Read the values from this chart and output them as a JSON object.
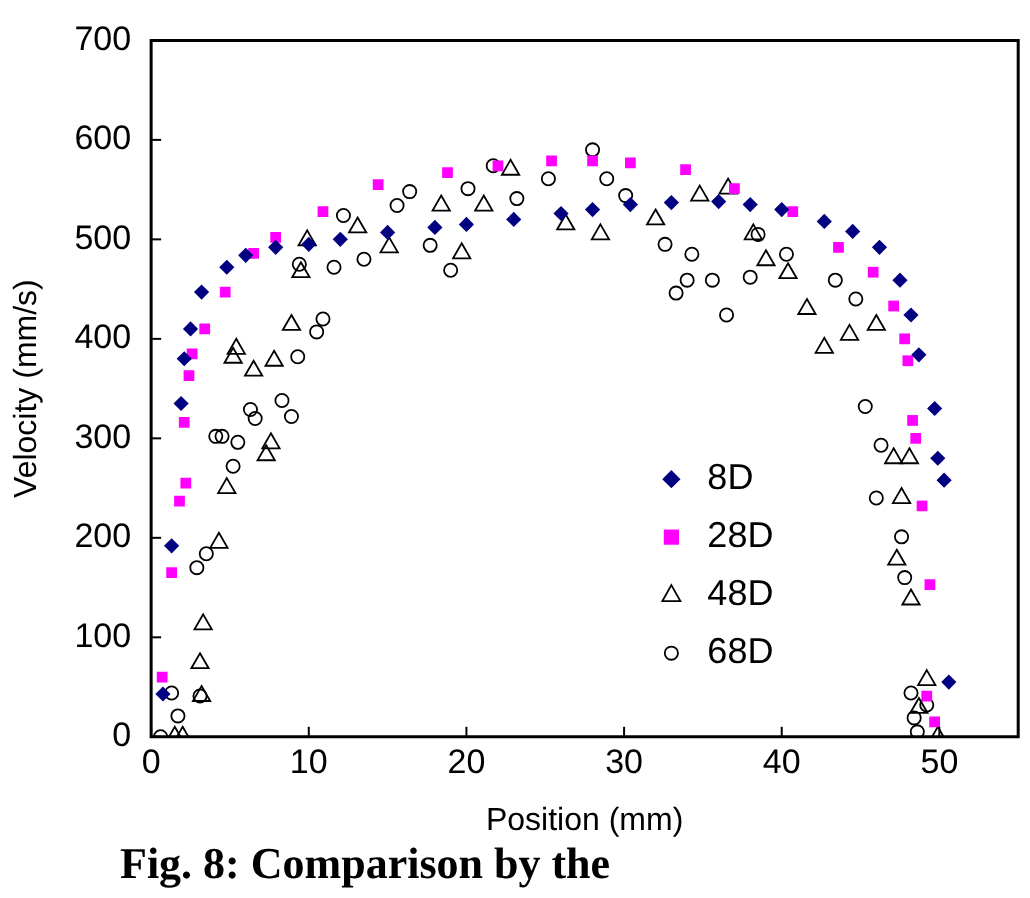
{
  "chart_data": {
    "type": "scatter",
    "xlabel": "Position (mm)",
    "ylabel": "Velocity (mm/s)",
    "xlim": [
      0,
      55
    ],
    "xticks": [
      0,
      10,
      20,
      30,
      40,
      50
    ],
    "ylim": [
      0,
      700
    ],
    "yticks": [
      0,
      100,
      200,
      300,
      400,
      500,
      600,
      700
    ],
    "grid": false,
    "legend": "right",
    "annotations": [
      "Fig. 8: Comparison by the"
    ],
    "series": [
      {
        "name": "8D",
        "color": "#000080",
        "marker": "diamond",
        "x": [
          0.75,
          1.3,
          1.9,
          2.1,
          2.5,
          3.2,
          4.8,
          6,
          7.9,
          10,
          12,
          15,
          18,
          20,
          23,
          26,
          28,
          30.4,
          33,
          36,
          38,
          40,
          42.7,
          44.5,
          46.2,
          47.5,
          48.2,
          48.7,
          49.7,
          49.9,
          50.3,
          50.6
        ],
        "values": [
          43,
          192,
          335,
          380,
          410,
          447,
          472,
          484,
          492,
          495,
          500,
          507,
          512,
          515,
          520,
          526,
          530,
          535,
          537,
          538,
          535,
          530,
          518,
          508,
          492,
          459,
          424,
          384,
          330,
          280,
          258,
          55
        ]
      },
      {
        "name": "28D",
        "color": "#ff00ff",
        "marker": "square",
        "x": [
          0.7,
          1.3,
          1.8,
          2.2,
          2.1,
          2.4,
          2.6,
          3.4,
          4.7,
          6.5,
          7.9,
          10.9,
          14.4,
          18.8,
          22,
          25.4,
          28,
          30.4,
          33.9,
          37,
          40.7,
          43.6,
          45.8,
          47.1,
          47.8,
          48,
          48.3,
          48.5,
          48.9,
          49.4,
          49.2,
          49.7
        ],
        "values": [
          60,
          165,
          237,
          255,
          316,
          363,
          385,
          410,
          447,
          486,
          502,
          528,
          555,
          567,
          574,
          579,
          579,
          577,
          570,
          551,
          528,
          492,
          467,
          433,
          400,
          378,
          318,
          300,
          232,
          153,
          41,
          15
        ]
      },
      {
        "name": "48D",
        "color": "#000000",
        "marker": "triangle",
        "x": [
          1.5,
          2,
          3.2,
          3.1,
          3.3,
          4.3,
          4.8,
          7.3,
          7.6,
          5.2,
          5.4,
          6.5,
          7.8,
          8.9,
          9.5,
          9.9,
          13.1,
          15.1,
          18.4,
          19.7,
          21.1,
          22.8,
          26.3,
          28.5,
          32,
          34.8,
          36.6,
          38.2,
          39,
          40.4,
          41.6,
          42.7,
          44.3,
          46,
          47.1,
          48.1,
          47.6,
          47.3,
          48.2,
          49.2,
          48.7,
          49.9
        ],
        "values": [
          0,
          0,
          41,
          74,
          113,
          195,
          250,
          283,
          295,
          381,
          390,
          368,
          378,
          414,
          467,
          499,
          512,
          492,
          534,
          486,
          534,
          570,
          515,
          505,
          520,
          544,
          551,
          505,
          479,
          466,
          430,
          391,
          404,
          414,
          280,
          280,
          240,
          178,
          138,
          57,
          29,
          0
        ]
      },
      {
        "name": "68D",
        "color": "#000000",
        "marker": "circle",
        "x": [
          0.6,
          1.7,
          1.3,
          3.1,
          2.9,
          3.5,
          4.1,
          4.5,
          5.5,
          5.2,
          6.3,
          6.6,
          8.3,
          8.9,
          9.3,
          10.5,
          10.9,
          9.4,
          11.6,
          12.2,
          13.5,
          15.6,
          16.4,
          17.7,
          19,
          20.1,
          21.7,
          23.2,
          25.2,
          28,
          28.9,
          30.1,
          32.6,
          33.3,
          34,
          34.3,
          35.6,
          36.5,
          38.5,
          38,
          40.3,
          43.4,
          44.7,
          45.3,
          46.3,
          46,
          47.6,
          47.8,
          48.2,
          48.4,
          49.2,
          48.6
        ],
        "values": [
          0,
          21,
          44,
          41,
          170,
          184,
          302,
          302,
          296,
          272,
          329,
          320,
          338,
          322,
          382,
          407,
          420,
          475,
          472,
          524,
          480,
          534,
          548,
          494,
          469,
          551,
          574,
          541,
          561,
          590,
          561,
          544,
          495,
          446,
          459,
          485,
          459,
          424,
          505,
          462,
          485,
          459,
          440,
          332,
          293,
          240,
          201,
          160,
          44,
          19,
          32,
          5
        ]
      }
    ]
  }
}
